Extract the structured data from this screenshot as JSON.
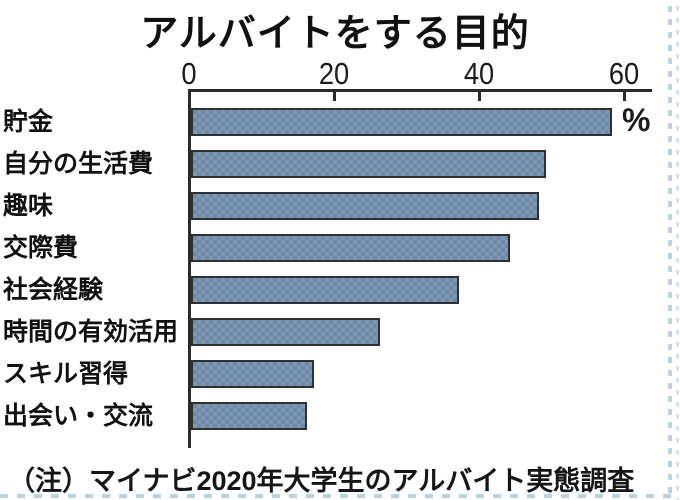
{
  "chart_data": {
    "type": "bar",
    "orientation": "horizontal",
    "title": "アルバイトをする目的",
    "unit_label": "%",
    "categories": [
      "貯金",
      "自分の生活費",
      "趣味",
      "交際費",
      "社会経験",
      "時間の有効活用",
      "スキル習得",
      "出会い・交流"
    ],
    "values": [
      58,
      49,
      48,
      44,
      37,
      26,
      17,
      16
    ],
    "x_tick_labels": [
      "0",
      "20",
      "40",
      "60"
    ],
    "x_tick_values": [
      0,
      20,
      40,
      60
    ],
    "xlim": [
      0,
      64
    ],
    "grid": false,
    "legend": "none",
    "note": "（注）マイナビ2020年大学生のアルバイト実態調査",
    "colors": {
      "bar_fill": "#7491ae",
      "bar_fill_alt": "#6d89a8",
      "bar_border": "#2f2f2f",
      "axis": "#2a2a2a",
      "text": "#111111",
      "background": "#ffffff",
      "edge_dots": "#bcd2e0"
    }
  }
}
